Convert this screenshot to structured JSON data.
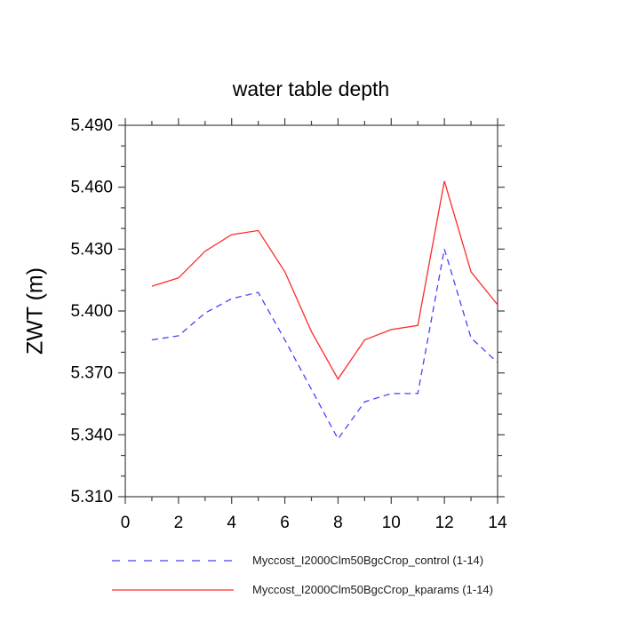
{
  "page": {
    "background": "#ffffff"
  },
  "chart_data": {
    "type": "line",
    "title": "water table depth",
    "ylabel": "ZWT  (m)",
    "xlabel": "",
    "x": [
      1,
      2,
      3,
      4,
      5,
      6,
      7,
      8,
      9,
      10,
      11,
      12,
      13,
      14
    ],
    "series": [
      {
        "name": "Myccost_I2000Clm50BgcCrop_control (1-14)",
        "color": "#4444ff",
        "style": "dashed",
        "values": [
          5.386,
          5.388,
          5.399,
          5.406,
          5.409,
          5.386,
          5.362,
          5.338,
          5.356,
          5.36,
          5.36,
          5.43,
          5.387,
          5.375
        ]
      },
      {
        "name": "Myccost_I2000Clm50BgcCrop_kparams (1-14)",
        "color": "#ff2a2a",
        "style": "solid",
        "values": [
          5.412,
          5.416,
          5.429,
          5.437,
          5.439,
          5.419,
          5.39,
          5.367,
          5.386,
          5.391,
          5.393,
          5.463,
          5.419,
          5.403
        ]
      }
    ],
    "xlim": [
      0,
      14
    ],
    "ylim": [
      5.31,
      5.49
    ],
    "x_major_step": 2,
    "x_minor_step": 1,
    "y_major_step": 0.03,
    "y_minor_step": 0.01,
    "y_tick_decimals": 3,
    "x_tick_labels": [
      "0",
      "2",
      "4",
      "6",
      "8",
      "10",
      "12",
      "14"
    ],
    "y_tick_labels": [
      "5.310",
      "5.340",
      "5.370",
      "5.400",
      "5.430",
      "5.460",
      "5.490"
    ],
    "grid": false,
    "legend_position": "bottom",
    "axis_color": "#404040",
    "text_color": "#000000"
  }
}
